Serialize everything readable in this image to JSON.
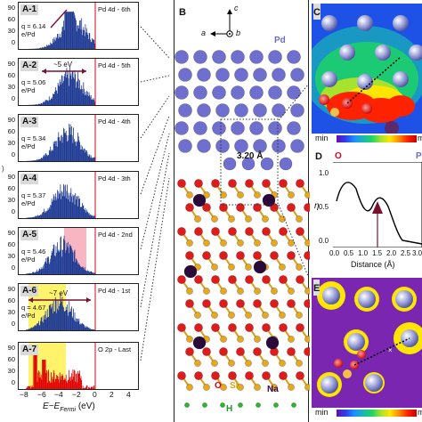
{
  "panelA": {
    "rows": [
      {
        "label": "A-1",
        "title": "Pd 4d - 6th",
        "q": "q = 6.14",
        "unit": "e/Pd"
      },
      {
        "label": "A-2",
        "title": "Pd 4d - 5th",
        "q": "q = 5.06",
        "unit": "e/Pd",
        "annot": "~5 eV"
      },
      {
        "label": "A-3",
        "title": "Pd 4d - 4th",
        "q": "q = 5.34",
        "unit": "e/Pd"
      },
      {
        "label": "A-4",
        "title": "Pd 4d - 3th",
        "q": "q = 5.37",
        "unit": "e/Pd"
      },
      {
        "label": "A-5",
        "title": "Pd 4d - 2nd",
        "q": "q = 5.46",
        "unit": "e/Pd"
      },
      {
        "label": "A-6",
        "title": "Pd 4d - 1st",
        "q": "q = 4.67",
        "unit": "e/Pd",
        "annot": "~7 eV"
      },
      {
        "label": "A-7",
        "title": "O 2p - Last",
        "q": "",
        "unit": ""
      }
    ],
    "yticks": [
      "90",
      "60",
      "30",
      "0"
    ],
    "xticks": [
      "−8",
      "−6",
      "−4",
      "−2",
      "0",
      "2",
      "4"
    ],
    "xlabel": "E−E",
    "xlabel_sub": "Fermi",
    "xlabel_unit": " (eV)"
  },
  "panelB": {
    "label": "B",
    "axis_c": "c",
    "axis_a": "a",
    "axis_b": "b",
    "pd": "Pd",
    "distance": "3.20 Å",
    "o": "O",
    "si": "Si",
    "na": "Na",
    "h": "H"
  },
  "panelC": {
    "label": "C",
    "min": "min",
    "max": "ma"
  },
  "panelD": {
    "label": "D",
    "o": "O",
    "pd": "P",
    "ylabel": "η",
    "xlabel": "Distance (Å)",
    "yticks": [
      "1.0",
      "0.5",
      "0.0"
    ],
    "xticks": [
      "0.0",
      "0.5",
      "1.0",
      "1.5",
      "2.0",
      "2.5",
      "3.0"
    ]
  },
  "panelE": {
    "label": "E",
    "min": "min",
    "max": "ma"
  },
  "colors": {
    "dos": "#1f3a93",
    "highlight_yellow": "#fff36b",
    "highlight_pink": "#f7b6c2",
    "red_line": "#d9001b",
    "o2p": "#e00000"
  }
}
